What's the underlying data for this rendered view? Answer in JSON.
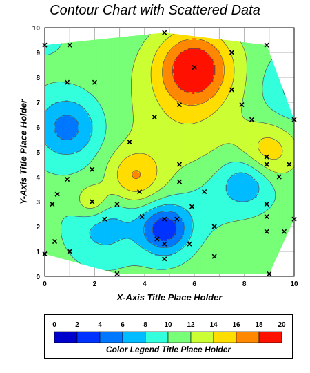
{
  "chart_data": {
    "type": "contour",
    "title": "Contour Chart with Scattered Data",
    "xlabel": "X-Axis Title Place Holder",
    "ylabel": "Y-Axis Title Place Holder",
    "xlim": [
      0,
      10
    ],
    "ylim": [
      0,
      10
    ],
    "x_ticks": [
      "0",
      "2",
      "4",
      "6",
      "8",
      "10"
    ],
    "y_ticks": [
      "0",
      "1",
      "2",
      "3",
      "4",
      "5",
      "6",
      "7",
      "8",
      "9",
      "10"
    ],
    "grid": true,
    "points": [
      [
        0.0,
        9.3
      ],
      [
        1.0,
        9.3
      ],
      [
        4.8,
        9.8
      ],
      [
        7.5,
        9.0
      ],
      [
        8.9,
        9.3
      ],
      [
        0.9,
        7.8
      ],
      [
        2.0,
        7.8
      ],
      [
        6.0,
        8.4
      ],
      [
        7.5,
        7.5
      ],
      [
        5.4,
        6.9
      ],
      [
        4.4,
        6.4
      ],
      [
        7.9,
        6.9
      ],
      [
        8.3,
        6.3
      ],
      [
        10.0,
        6.3
      ],
      [
        3.4,
        5.4
      ],
      [
        8.9,
        4.8
      ],
      [
        5.4,
        4.5
      ],
      [
        8.9,
        4.5
      ],
      [
        9.8,
        4.5
      ],
      [
        1.9,
        4.3
      ],
      [
        0.9,
        3.9
      ],
      [
        9.4,
        4.0
      ],
      [
        5.4,
        3.8
      ],
      [
        0.5,
        3.3
      ],
      [
        3.8,
        3.4
      ],
      [
        6.4,
        3.4
      ],
      [
        0.3,
        2.9
      ],
      [
        1.9,
        3.0
      ],
      [
        2.9,
        2.9
      ],
      [
        5.9,
        2.8
      ],
      [
        8.9,
        2.9
      ],
      [
        3.9,
        2.4
      ],
      [
        2.4,
        2.3
      ],
      [
        4.8,
        2.3
      ],
      [
        5.3,
        2.3
      ],
      [
        8.9,
        2.4
      ],
      [
        10.0,
        2.3
      ],
      [
        6.8,
        2.0
      ],
      [
        4.5,
        1.5
      ],
      [
        4.8,
        1.3
      ],
      [
        5.8,
        1.3
      ],
      [
        8.9,
        1.8
      ],
      [
        9.6,
        1.8
      ],
      [
        0.4,
        1.4
      ],
      [
        1.0,
        1.0
      ],
      [
        6.8,
        0.8
      ],
      [
        4.8,
        0.7
      ],
      [
        0.0,
        0.9
      ],
      [
        2.9,
        0.1
      ],
      [
        9.0,
        0.1
      ]
    ],
    "hull": [
      [
        0.0,
        9.3
      ],
      [
        4.8,
        9.8
      ],
      [
        8.9,
        9.3
      ],
      [
        10.0,
        6.3
      ],
      [
        10.0,
        2.3
      ],
      [
        9.0,
        0.1
      ],
      [
        2.9,
        0.1
      ],
      [
        0.0,
        0.9
      ]
    ],
    "peaks": [
      [
        6.0,
        8.4,
        19.5,
        1.1
      ],
      [
        9.0,
        5.0,
        15.0,
        0.8
      ],
      [
        3.6,
        4.0,
        15.5,
        0.75
      ],
      [
        1.9,
        3.0,
        14.5,
        0.5
      ],
      [
        5.5,
        5.9,
        13.0,
        1.7
      ],
      [
        1.9,
        8.6,
        11.0,
        1.8
      ],
      [
        8.0,
        1.0,
        11.0,
        1.6
      ],
      [
        0.2,
        9.6,
        9.5,
        1.0
      ],
      [
        4.8,
        1.9,
        2.5,
        0.7
      ],
      [
        0.9,
        6.0,
        5.0,
        0.9
      ],
      [
        8.1,
        3.8,
        6.0,
        0.75
      ],
      [
        2.4,
        2.0,
        7.0,
        0.9
      ],
      [
        6.5,
        3.0,
        9.0,
        1.0
      ],
      [
        10.0,
        7.5,
        7.5,
        0.9
      ]
    ],
    "background_level": 10.5,
    "legend": {
      "title": "Color Legend Title Place Holder",
      "levels": [
        "0",
        "2",
        "4",
        "6",
        "8",
        "10",
        "12",
        "14",
        "16",
        "18",
        "20"
      ],
      "colors": [
        "#0000cc",
        "#0033ff",
        "#0077ff",
        "#00bbff",
        "#33ffdd",
        "#77ff77",
        "#ccff33",
        "#ffdd00",
        "#ff8800",
        "#ff1100"
      ]
    },
    "marker": "x",
    "grid_color": "#b0b0b0"
  }
}
